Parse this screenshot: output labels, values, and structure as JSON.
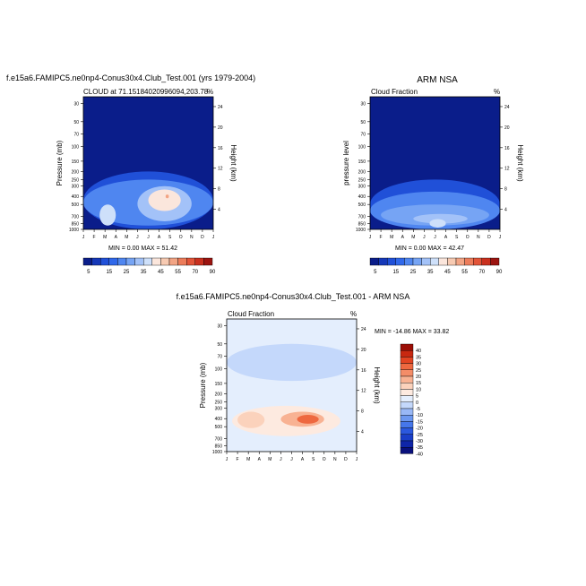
{
  "months": [
    "J",
    "F",
    "M",
    "A",
    "M",
    "J",
    "J",
    "A",
    "S",
    "O",
    "N",
    "D",
    "J"
  ],
  "pressure_ticks": [
    "30",
    "50",
    "70",
    "100",
    "150",
    "200",
    "250",
    "300",
    "400",
    "500",
    "700",
    "850",
    "1000"
  ],
  "height_ticks": [
    "24",
    "20",
    "16",
    "12",
    "8",
    "4"
  ],
  "colors": {
    "abs_levels": [
      "#0a1d8a",
      "#1538b8",
      "#2050d8",
      "#3068ea",
      "#4f86f0",
      "#76a4f4",
      "#a3c2f8",
      "#cee0fa",
      "#fbe6dc",
      "#f7cab2",
      "#f2a484",
      "#ec7c5a",
      "#e25438",
      "#c9301e",
      "#9c1410"
    ],
    "diff_levels": [
      "#09107c",
      "#0f25a8",
      "#1a3ec8",
      "#2b58de",
      "#4677ea",
      "#6d98f0",
      "#99b8f6",
      "#c4d8fb",
      "#e4eefd",
      "#fdeae0",
      "#fbd2bc",
      "#f8b293",
      "#f48d68",
      "#ee6840",
      "#e24422",
      "#c82810",
      "#9c0e06"
    ]
  },
  "chart_data": [
    {
      "type": "contour",
      "title": "f.e15a6.FAMIPC5.ne0np4-Conus30x4.Club_Test.001 (yrs 1979-2004)",
      "subtitle": "CLOUD at 71.15184020996094,203.78",
      "units": "%",
      "ylabel": "Pressure (mb)",
      "y2label": "Height (km)",
      "stats": "MIN =   0.00 MAX =  51.42",
      "min": 0.0,
      "max": 51.42,
      "fields": [
        {
          "p": [
            200,
            1000
          ],
          "months": [
            0,
            12
          ],
          "value": 10
        },
        {
          "p": [
            250,
            900
          ],
          "months": [
            0,
            12
          ],
          "value": 20
        },
        {
          "p": [
            300,
            800
          ],
          "months": [
            5,
            10
          ],
          "value": 30
        },
        {
          "p": [
            330,
            600
          ],
          "months": [
            6,
            9
          ],
          "value": 40
        },
        {
          "p": [
            500,
            900
          ],
          "months": [
            1.5,
            3
          ],
          "value": 35
        },
        {
          "p": [
            380,
            420
          ],
          "months": [
            7.6,
            7.9
          ],
          "value": 50
        }
      ]
    },
    {
      "type": "contour",
      "title": "ARM NSA",
      "subtitle": "Cloud Fraction",
      "units": "%",
      "ylabel": "pressure level",
      "y2label": "Height (km)",
      "stats": "MIN =   0.00 MAX =  42.47",
      "min": 0.0,
      "max": 42.47,
      "fields": [
        {
          "p": [
            250,
            1000
          ],
          "months": [
            0,
            12
          ],
          "value": 10
        },
        {
          "p": [
            350,
            1000
          ],
          "months": [
            0,
            12
          ],
          "value": 20
        },
        {
          "p": [
            500,
            900
          ],
          "months": [
            1,
            11
          ],
          "value": 25
        },
        {
          "p": [
            650,
            850
          ],
          "months": [
            4,
            9
          ],
          "value": 30
        },
        {
          "p": [
            750,
            950
          ],
          "months": [
            5.5,
            7
          ],
          "value": 35
        }
      ]
    },
    {
      "type": "contour",
      "title": "f.e15a6.FAMIPC5.ne0np4-Conus30x4.Club_Test.001 - ARM NSA",
      "subtitle": "Cloud Fraction",
      "units": "%",
      "ylabel": "Pressure (mb)",
      "y2label": "Height (km)",
      "stats": "MIN = -14.86 MAX =  33.82",
      "min": -14.86,
      "max": 33.82,
      "fields": [
        {
          "p": [
            30,
            1000
          ],
          "months": [
            0,
            12
          ],
          "value": 2
        },
        {
          "p": [
            50,
            140
          ],
          "months": [
            0,
            12
          ],
          "value": -3
        },
        {
          "p": [
            280,
            650
          ],
          "months": [
            0.5,
            10.5
          ],
          "value": 7
        },
        {
          "p": [
            330,
            520
          ],
          "months": [
            1,
            3.5
          ],
          "value": 12
        },
        {
          "p": [
            330,
            500
          ],
          "months": [
            5,
            9
          ],
          "value": 15
        },
        {
          "p": [
            360,
            460
          ],
          "months": [
            6.5,
            8.5
          ],
          "value": 25
        }
      ]
    }
  ],
  "legend_abs": {
    "labels": [
      "5",
      "15",
      "25",
      "35",
      "45",
      "55",
      "70",
      "90"
    ]
  },
  "legend_diff": {
    "labels": [
      "40",
      "35",
      "30",
      "25",
      "20",
      "15",
      "10",
      "5",
      "0",
      "-5",
      "-10",
      "-15",
      "-20",
      "-25",
      "-30",
      "-35",
      "-40"
    ]
  }
}
